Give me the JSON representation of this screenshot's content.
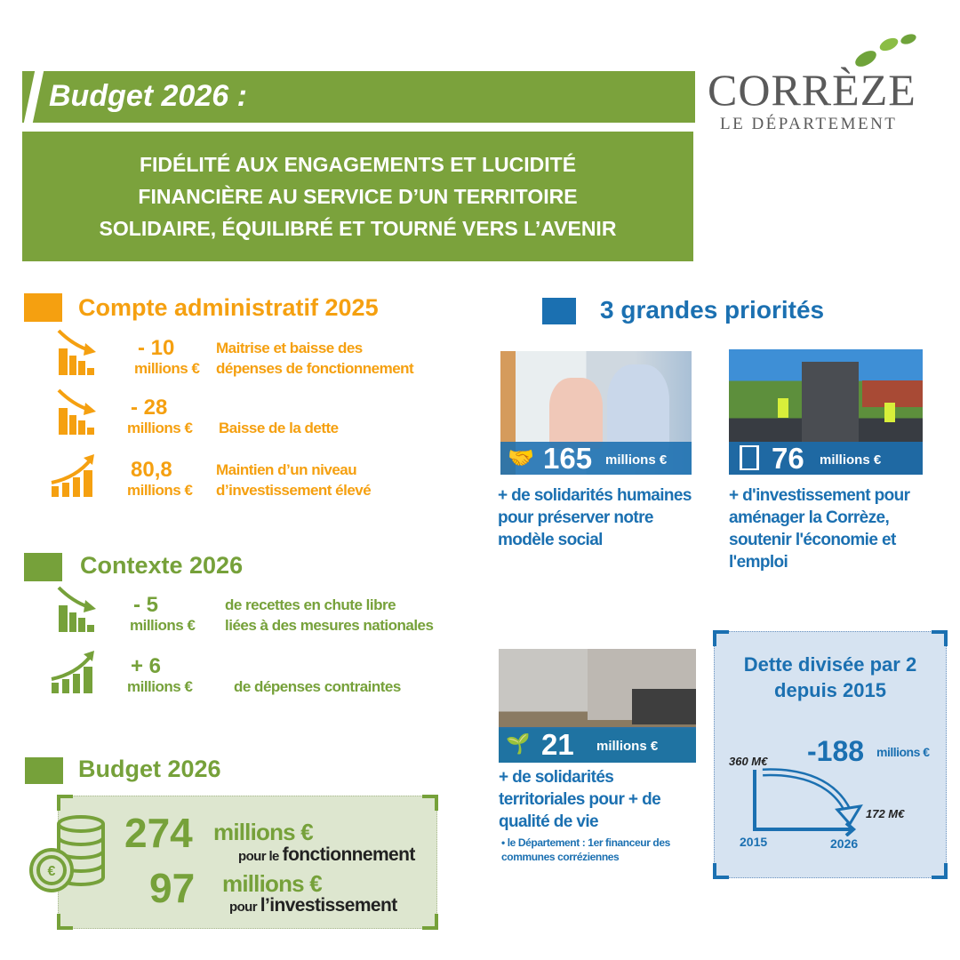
{
  "header": {
    "title": "Budget 2026 :",
    "subtitle_lines": [
      "FIDÉLITÉ AUX ENGAGEMENTS ET LUCIDITÉ",
      "FINANCIÈRE AU SERVICE D’UN TERRITOIRE",
      "SOLIDAIRE, ÉQUILIBRÉ ET TOURNÉ VERS L’AVENIR"
    ]
  },
  "logo": {
    "name": "CORRÈZE",
    "tagline": "LE DÉPARTEMENT"
  },
  "colors": {
    "green": "#7ba23c",
    "orange": "#f5a010",
    "blue": "#1b70b1",
    "light_blue": "#d6e3f1",
    "light_green": "#dde6cf"
  },
  "compte": {
    "title": "Compte administratif 2025",
    "items": [
      {
        "icon": "chart-down-icon",
        "value": "- 10",
        "unit": "millions €",
        "desc": [
          "Maitrise et baisse des",
          "dépenses de fonctionnement"
        ]
      },
      {
        "icon": "chart-down-icon",
        "value": "- 28",
        "unit": "millions €",
        "desc": [
          "Baisse de la dette"
        ]
      },
      {
        "icon": "chart-up-icon",
        "value": "80,8",
        "unit": "millions €",
        "desc": [
          "Maintien d’un niveau",
          "d’investissement élevé"
        ]
      }
    ]
  },
  "contexte": {
    "title": "Contexte 2026",
    "items": [
      {
        "icon": "chart-down-icon",
        "value": "- 5",
        "unit": "millions €",
        "desc": [
          "de recettes en chute libre",
          "liées à des mesures nationales"
        ]
      },
      {
        "icon": "chart-up-icon",
        "value": "+ 6",
        "unit": "millions €",
        "desc": [
          "de dépenses contraintes"
        ]
      }
    ]
  },
  "budget": {
    "title": "Budget 2026",
    "lines": [
      {
        "value": "274",
        "unit": "millions €",
        "pre": "pour le",
        "post": "fonctionnement"
      },
      {
        "value": "97",
        "unit": "millions €",
        "pre": "pour",
        "post": "l’investissement"
      }
    ]
  },
  "priorites": {
    "title": "3 grandes priorités",
    "items": [
      {
        "icon": "handshake-icon",
        "amount": "165",
        "unit": "millions €",
        "caption": [
          "+ de solidarités humaines",
          "pour préserver notre",
          "modèle social"
        ]
      },
      {
        "icon": "road-icon",
        "amount": "76",
        "unit": "millions €",
        "caption": [
          "+ d'investissement pour",
          "aménager la Corrèze,",
          "soutenir l'économie et",
          "l'emploi"
        ]
      },
      {
        "icon": "hand-plant-icon",
        "amount": "21",
        "unit": "millions €",
        "caption": [
          "+ de solidarités",
          "territoriales pour + de",
          "qualité de vie"
        ],
        "note": [
          "• le Département : 1er financeur des",
          "communes corréziennes"
        ]
      }
    ]
  },
  "dette": {
    "title": [
      "Dette divisée par 2",
      "depuis 2015"
    ],
    "delta": "-188",
    "delta_unit": "millions €",
    "start_label": "360 M€",
    "end_label": "172 M€",
    "x_start": "2015",
    "x_end": "2026"
  }
}
